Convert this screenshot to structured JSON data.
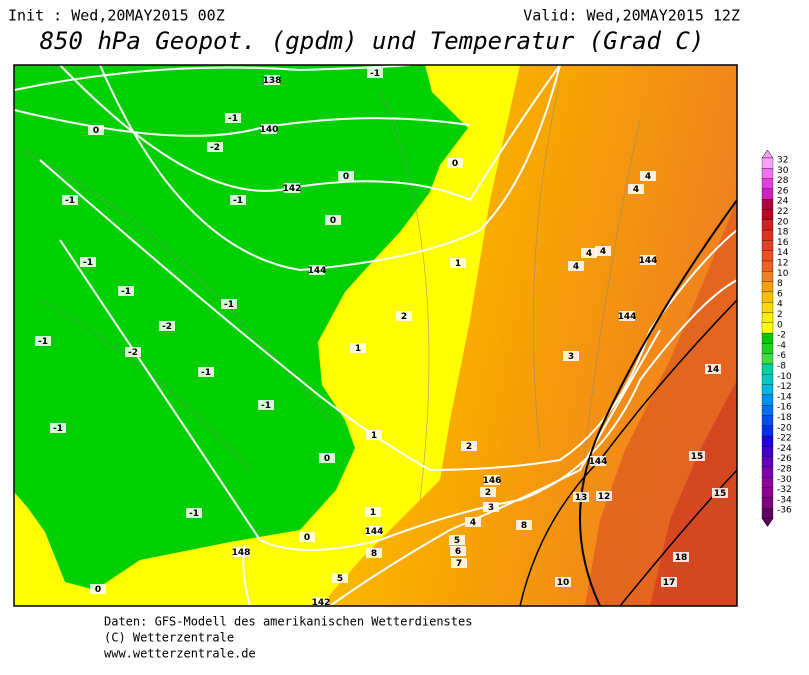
{
  "header": {
    "init": "Init : Wed,20MAY2015 00Z",
    "valid": "Valid: Wed,20MAY2015 12Z",
    "title": "850 hPa Geopot. (gpdm) und Temperatur (Grad C)"
  },
  "map": {
    "labels": [
      "138",
      "-1",
      "0",
      "-1",
      "140",
      "-2",
      "0",
      "0",
      "142",
      "-1",
      "-1",
      "0",
      "-1",
      "144",
      "1",
      "-1",
      "-1",
      "2",
      "-2",
      "-1",
      "-2",
      "1",
      "-1",
      "-1",
      "1",
      "-1",
      "0",
      "2",
      "-1",
      "0",
      "148",
      "0",
      "4",
      "4",
      "4",
      "4",
      "4",
      "144",
      "144",
      "3",
      "14",
      "144",
      "146",
      "15",
      "15",
      "2",
      "3",
      "13",
      "12",
      "1",
      "4",
      "8",
      "144",
      "5",
      "6",
      "7",
      "8",
      "18",
      "10",
      "17",
      "5",
      "142"
    ]
  },
  "legend": {
    "labels": [
      32,
      30,
      28,
      26,
      24,
      22,
      20,
      18,
      16,
      14,
      12,
      10,
      8,
      6,
      4,
      2,
      0,
      -2,
      -4,
      -6,
      -8,
      -10,
      -12,
      -14,
      -16,
      -18,
      -20,
      -22,
      -24,
      -26,
      -28,
      -30,
      -32,
      -34,
      -36
    ],
    "colors": [
      "#f8a0f8",
      "#f070f0",
      "#e040e0",
      "#d020c0",
      "#b00040",
      "#c00020",
      "#d02020",
      "#e03020",
      "#e84020",
      "#f05020",
      "#f06020",
      "#f08020",
      "#f8a000",
      "#f8c000",
      "#fcd800",
      "#f8f000",
      "#ffff00",
      "#00c800",
      "#20d020",
      "#40dc40",
      "#00d0a0",
      "#00c8c8",
      "#00b8e0",
      "#0090f0",
      "#0070f0",
      "#0050f0",
      "#0030e8",
      "#2000e0",
      "#4000d0",
      "#6000c0",
      "#8000b0",
      "#9000a0",
      "#900090",
      "#800080",
      "#600060"
    ]
  },
  "footer": {
    "line1": "Daten: GFS-Modell des amerikanischen Wetterdienstes",
    "line2": "(C) Wetterzentrale",
    "line3": "www.wetterzentrale.de"
  }
}
